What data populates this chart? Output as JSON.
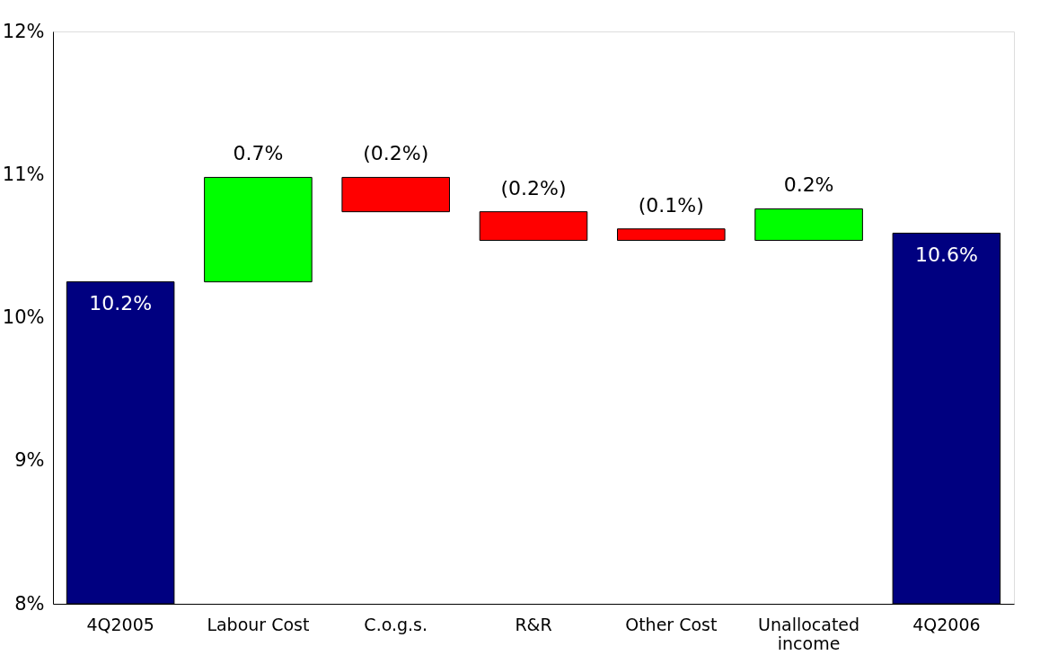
{
  "chart_data": {
    "type": "bar",
    "categories": [
      "4Q2005",
      "Labour Cost",
      "C.o.g.s.",
      "R&R",
      "Other Cost",
      "Unallocated income",
      "4Q2006"
    ],
    "base": [
      8,
      10.25,
      10.98,
      10.74,
      10.62,
      10.54,
      8
    ],
    "values": [
      2.25,
      0.73,
      -0.24,
      -0.2,
      -0.08,
      0.22,
      2.59
    ],
    "colors": [
      "#000080",
      "#00ff00",
      "#ff0000",
      "#ff0000",
      "#ff0000",
      "#00ff00",
      "#000080"
    ],
    "value_labels": [
      "10.2%",
      "0.7%",
      "(0.2%)",
      "(0.2%)",
      "(0.1%)",
      "0.2%",
      "10.6%"
    ],
    "ylim": [
      8,
      12
    ],
    "yticks": [
      {
        "value": 8,
        "label": "8%"
      },
      {
        "value": 9,
        "label": "9%"
      },
      {
        "value": 10,
        "label": "10%"
      },
      {
        "value": 11,
        "label": "11%"
      },
      {
        "value": 12,
        "label": "12%"
      }
    ],
    "grid": false
  }
}
